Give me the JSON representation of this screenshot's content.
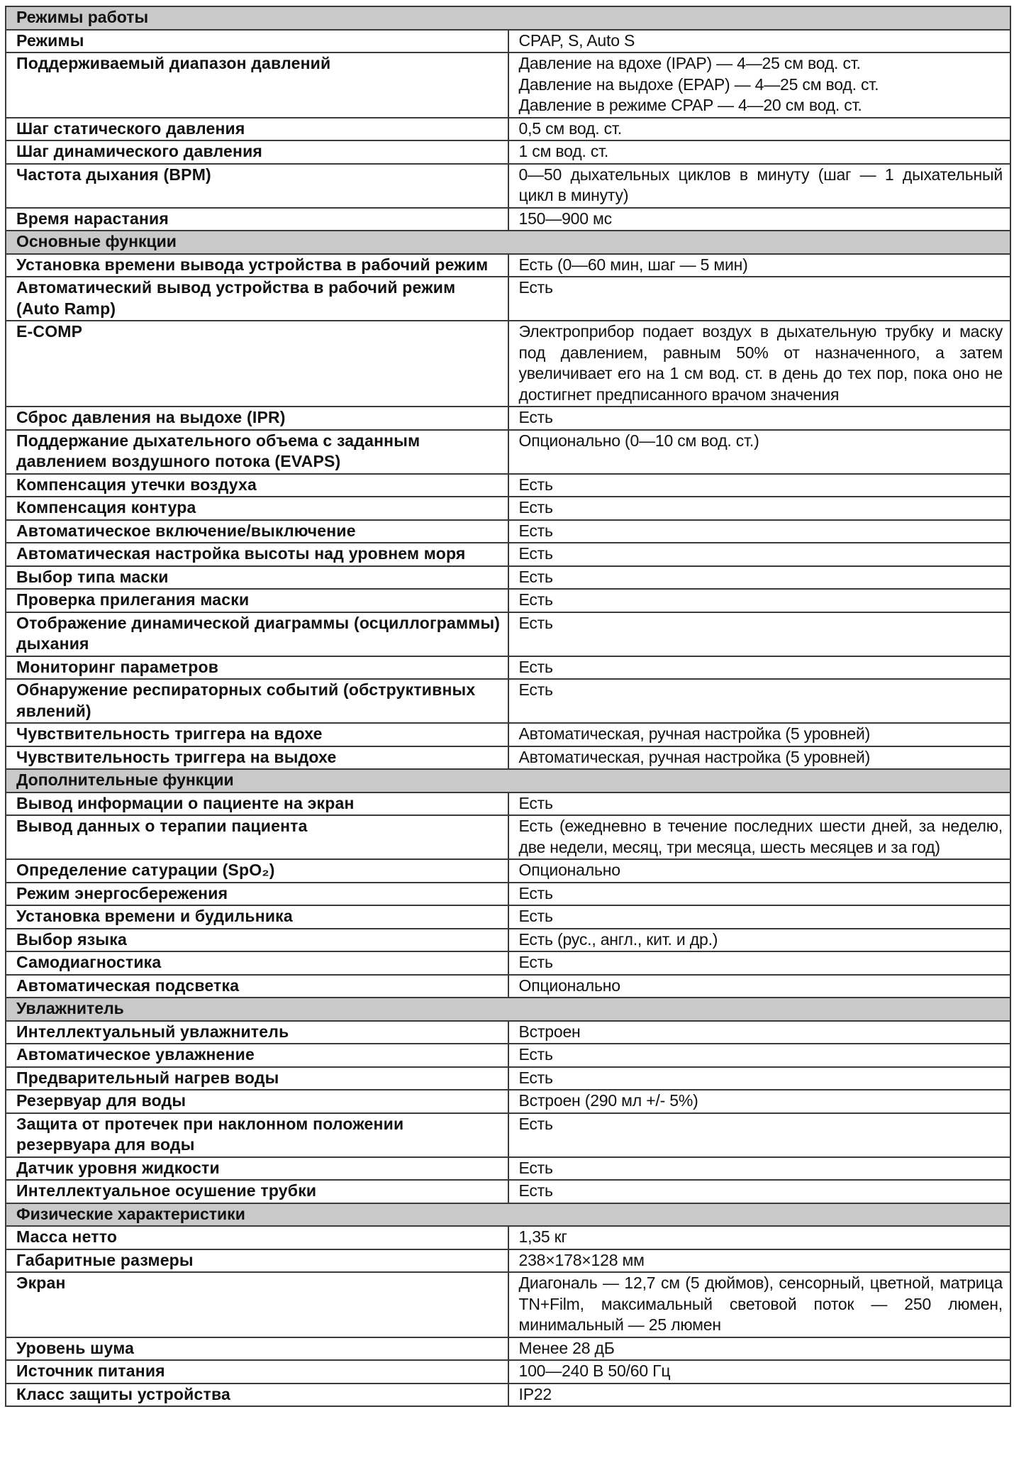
{
  "sections": [
    {
      "title": "Режимы работы",
      "rows": [
        {
          "label": "Режимы",
          "value": "CPAP, S, Auto S"
        },
        {
          "label": "Поддерживаемый диапазон давлений",
          "value": "Давление на вдохе (IPAP) — 4—25 см вод. ст.\nДавление на выдохе (EPAP) — 4—25 см вод. ст.\nДавление в режиме CPAP — 4—20 см вод. ст."
        },
        {
          "label": "Шаг статического давления",
          "value": "0,5 см вод. ст."
        },
        {
          "label": "Шаг динамического давления",
          "value": "1 см вод. ст."
        },
        {
          "label": "Частота дыхания (BPM)",
          "value": "0—50 дыхательных циклов в минуту (шаг — 1 дыхательный цикл в минуту)"
        },
        {
          "label": "Время нарастания",
          "value": "150—900 мс"
        }
      ]
    },
    {
      "title": "Основные функции",
      "rows": [
        {
          "label": "Установка времени вывода устройства в рабочий режим",
          "value": "Есть (0—60 мин, шаг — 5 мин)"
        },
        {
          "label": "Автоматический вывод устройства в рабочий режим (Auto Ramp)",
          "value": "Есть"
        },
        {
          "label": "E-COMP",
          "value": "Электроприбор подает воздух в дыхательную трубку и маску под давлением, равным 50% от назначенного, а затем увеличивает его на 1 см вод. ст. в день до тех пор, пока оно не достигнет предписанного врачом значения"
        },
        {
          "label": "Сброс давления на выдохе (IPR)",
          "value": "Есть"
        },
        {
          "label": "Поддержание дыхательного объема с заданным давлением воздушного потока (EVAPS)",
          "value": "Опционально (0—10 см вод. ст.)"
        },
        {
          "label": "Компенсация утечки воздуха",
          "value": "Есть"
        },
        {
          "label": "Компенсация контура",
          "value": "Есть"
        },
        {
          "label": "Автоматическое включение/выключение",
          "value": "Есть"
        },
        {
          "label": "Автоматическая настройка высоты над уровнем моря",
          "value": "Есть"
        },
        {
          "label": "Выбор типа маски",
          "value": "Есть"
        },
        {
          "label": "Проверка прилегания маски",
          "value": "Есть"
        },
        {
          "label": "Отображение динамической диаграммы (осциллограммы) дыхания",
          "value": "Есть"
        },
        {
          "label": "Мониторинг параметров",
          "value": "Есть"
        },
        {
          "label": "Обнаружение респираторных событий (обструктивных явлений)",
          "value": "Есть"
        },
        {
          "label": "Чувствительность триггера на вдохе",
          "value": "Автоматическая, ручная настройка (5 уровней)"
        },
        {
          "label": "Чувствительность триггера на выдохе",
          "value": "Автоматическая, ручная настройка (5 уровней)"
        }
      ]
    },
    {
      "title": "Дополнительные функции",
      "rows": [
        {
          "label": "Вывод информации о пациенте на экран",
          "value": "Есть"
        },
        {
          "label": "Вывод данных о терапии пациента",
          "value": "Есть (ежедневно в течение последних шести дней, за неделю, две недели, месяц, три месяца, шесть месяцев и за год)"
        },
        {
          "label": "Определение сатурации (SpO₂)",
          "value": "Опционально"
        },
        {
          "label": "Режим энергосбережения",
          "value": "Есть"
        },
        {
          "label": "Установка времени и будильника",
          "value": "Есть"
        },
        {
          "label": "Выбор языка",
          "value": "Есть (рус., англ., кит. и др.)"
        },
        {
          "label": "Самодиагностика",
          "value": "Есть"
        },
        {
          "label": "Автоматическая подсветка",
          "value": "Опционально"
        }
      ]
    },
    {
      "title": "Увлажнитель",
      "rows": [
        {
          "label": "Интеллектуальный увлажнитель",
          "value": "Встроен"
        },
        {
          "label": "Автоматическое увлажнение",
          "value": "Есть"
        },
        {
          "label": "Предварительный нагрев воды",
          "value": "Есть"
        },
        {
          "label": "Резервуар для воды",
          "value": "Встроен (290 мл +/- 5%)"
        },
        {
          "label": "Защита от протечек при наклонном положении резервуара для воды",
          "value": "Есть"
        },
        {
          "label": "Датчик уровня жидкости",
          "value": "Есть"
        },
        {
          "label": "Интеллектуальное осушение трубки",
          "value": "Есть"
        }
      ]
    },
    {
      "title": "Физические характеристики",
      "rows": [
        {
          "label": "Масса нетто",
          "value": "1,35 кг"
        },
        {
          "label": "Габаритные размеры",
          "value": "238×178×128 мм"
        },
        {
          "label": "Экран",
          "value": "Диагональ — 12,7 см (5 дюймов), сенсорный, цветной, матрица TN+Film, максимальный световой поток — 250 люмен, минимальный — 25 люмен"
        },
        {
          "label": "Уровень шума",
          "value": "Менее 28 дБ"
        },
        {
          "label": "Источник питания",
          "value": "100—240 В 50/60 Гц"
        },
        {
          "label": "Класс защиты устройства",
          "value": "IP22"
        }
      ]
    }
  ]
}
